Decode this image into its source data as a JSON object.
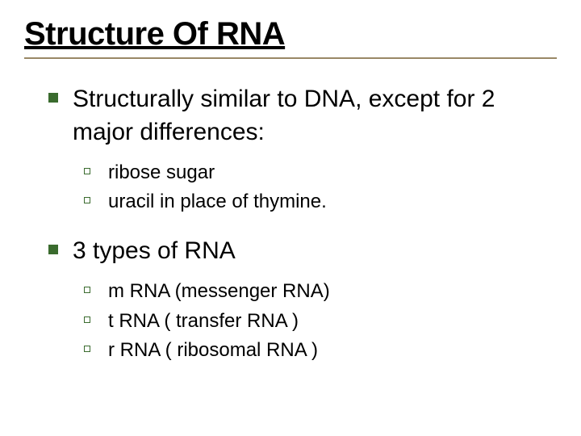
{
  "title": "Structure  Of  RNA",
  "sections": [
    {
      "heading": "Structurally similar to DNA, except for 2 major differences:",
      "items": [
        "ribose sugar",
        "uracil in place of thymine."
      ]
    },
    {
      "heading": "3 types of RNA",
      "items": [
        "m RNA (messenger RNA)",
        "t RNA ( transfer RNA )",
        "r RNA ( ribosomal RNA )"
      ]
    }
  ],
  "colors": {
    "title_underline": "#9a8866",
    "bullet_green": "#3a6b2e",
    "text": "#000000",
    "background": "#ffffff"
  },
  "typography": {
    "title_size": 40,
    "main_text_size": 30,
    "sub_text_size": 24,
    "font_family": "Arial"
  }
}
